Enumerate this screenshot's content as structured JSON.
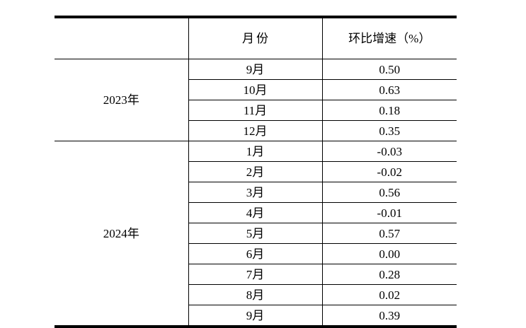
{
  "page": {
    "background_color": "#ffffff",
    "text_color": "#000000",
    "rule_color": "#000000"
  },
  "table": {
    "header": {
      "year": "",
      "month": "月份",
      "growth": "环比增速（%）"
    },
    "sections": [
      {
        "year": "2023年",
        "rows": [
          {
            "month": "9月",
            "value": "0.50"
          },
          {
            "month": "10月",
            "value": "0.63"
          },
          {
            "month": "11月",
            "value": "0.18"
          },
          {
            "month": "12月",
            "value": "0.35"
          }
        ]
      },
      {
        "year": "2024年",
        "rows": [
          {
            "month": "1月",
            "value": "-0.03"
          },
          {
            "month": "2月",
            "value": "-0.02"
          },
          {
            "month": "3月",
            "value": "0.56"
          },
          {
            "month": "4月",
            "value": "-0.01"
          },
          {
            "month": "5月",
            "value": "0.57"
          },
          {
            "month": "6月",
            "value": "0.00"
          },
          {
            "month": "7月",
            "value": "0.28"
          },
          {
            "month": "8月",
            "value": "0.02"
          },
          {
            "month": "9月",
            "value": "0.39"
          }
        ]
      }
    ]
  }
}
